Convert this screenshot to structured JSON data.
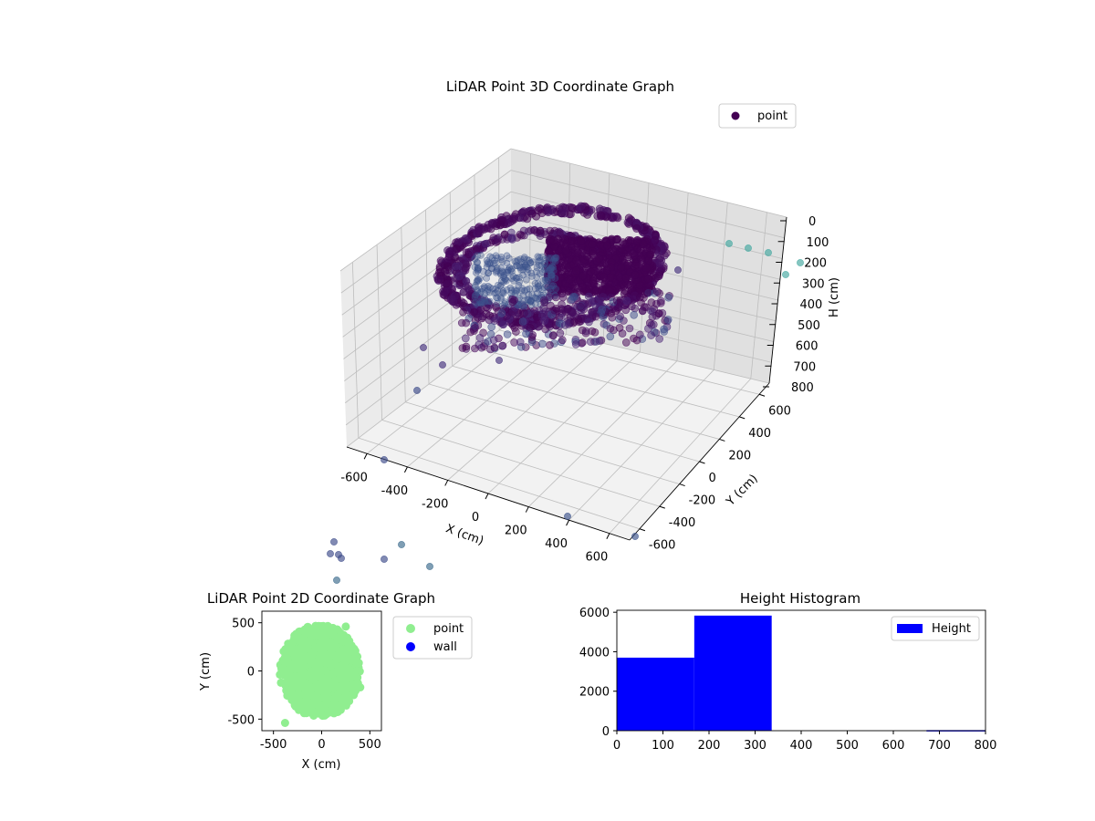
{
  "colors": {
    "point_3d": "#440154",
    "point_2d": "#90ee90",
    "wall_2d": "#0000ff",
    "hist_bar": "#0000ff"
  },
  "chart_data": [
    {
      "type": "scatter",
      "projection": "3d",
      "title": "LiDAR Point 3D Coordinate Graph",
      "xlabel": "X (cm)",
      "ylabel": "Y (cm)",
      "zlabel": "H (cm)",
      "xlim": [
        -650,
        650
      ],
      "ylim": [
        -650,
        650
      ],
      "zlim": [
        800,
        0
      ],
      "xticks": [
        "-600",
        "-400",
        "-200",
        "0",
        "200",
        "400",
        "600"
      ],
      "yticks": [
        "-600",
        "-400",
        "-200",
        "0",
        "200",
        "400",
        "600"
      ],
      "zticks": [
        "0",
        "100",
        "200",
        "300",
        "400",
        "500",
        "600",
        "700",
        "800"
      ],
      "legend": {
        "entries": [
          "point"
        ],
        "position": "upper-right"
      },
      "grid": true,
      "colormap": "viridis"
    },
    {
      "type": "scatter",
      "title": "LiDAR Point 2D Coordinate Graph",
      "xlabel": "X (cm)",
      "ylabel": "Y (cm)",
      "xlim": [
        -620,
        620
      ],
      "ylim": [
        -620,
        620
      ],
      "xticks": [
        "-500",
        "0",
        "500"
      ],
      "yticks": [
        "500",
        "0",
        "-500"
      ],
      "series": [
        {
          "name": "point",
          "shape": "elliptical cloud",
          "center": [
            -20,
            0
          ],
          "x_extent": [
            -480,
            430
          ],
          "y_extent": [
            -540,
            500
          ]
        },
        {
          "name": "wall",
          "points": []
        }
      ],
      "legend": {
        "entries": [
          "point",
          "wall"
        ],
        "position": "outside-right"
      },
      "grid": false
    },
    {
      "type": "bar",
      "title": "Height Histogram",
      "xlim": [
        0,
        800
      ],
      "ylim": [
        0,
        6100
      ],
      "xticks": [
        "0",
        "100",
        "200",
        "300",
        "400",
        "500",
        "600",
        "700",
        "800"
      ],
      "yticks": [
        "0",
        "2000",
        "4000",
        "6000"
      ],
      "bins": [
        {
          "x0": 0,
          "x1": 168,
          "count": 3700
        },
        {
          "x0": 168,
          "x1": 336,
          "count": 5830
        },
        {
          "x0": 336,
          "x1": 504,
          "count": 0
        },
        {
          "x0": 504,
          "x1": 672,
          "count": 0
        },
        {
          "x0": 672,
          "x1": 800,
          "count": 30
        }
      ],
      "legend": {
        "entries": [
          "Height"
        ],
        "position": "upper-right"
      },
      "grid": false
    }
  ]
}
